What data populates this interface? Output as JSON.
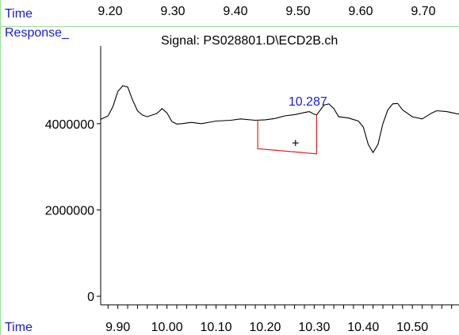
{
  "chart_data": {
    "type": "line",
    "title": "Signal: PS028801.D\\ECD2B.ch",
    "ylabel": "Response_",
    "xlabel": "Time",
    "top_axis_label": "Time",
    "top_ticks": [
      "9.20",
      "9.30",
      "9.40",
      "9.50",
      "9.60",
      "9.70"
    ],
    "x_ticks": [
      "9.90",
      "10.00",
      "10.10",
      "10.20",
      "10.30",
      "10.40",
      "10.50"
    ],
    "y_ticks": [
      "0",
      "2000000",
      "4000000"
    ],
    "xlim": [
      9.865,
      10.595
    ],
    "ylim": [
      -200000,
      5800000
    ],
    "peak_label": "10.287",
    "integration_region": {
      "x_start": 10.185,
      "x_end": 10.305,
      "baseline_start": 3420000,
      "baseline_end": 3300000
    },
    "cursor_marker": {
      "x": 10.262,
      "y": 3560000,
      "symbol": "+"
    },
    "series": [
      {
        "x": [
          9.865,
          9.88,
          9.89,
          9.9,
          9.91,
          9.92,
          9.93,
          9.94,
          9.95,
          9.96,
          9.97,
          9.98,
          9.99,
          10.0,
          10.01,
          10.02,
          10.03,
          10.05,
          10.07,
          10.1,
          10.13,
          10.15,
          10.18,
          10.2,
          10.22,
          10.24,
          10.26,
          10.28,
          10.29,
          10.3,
          10.305,
          10.31,
          10.32,
          10.33,
          10.34,
          10.35,
          10.37,
          10.39,
          10.4,
          10.41,
          10.42,
          10.43,
          10.44,
          10.45,
          10.46,
          10.47,
          10.48,
          10.5,
          10.52,
          10.54,
          10.55,
          10.57,
          10.595
        ],
        "y": [
          4100000,
          4180000,
          4400000,
          4750000,
          4880000,
          4850000,
          4550000,
          4300000,
          4200000,
          4160000,
          4200000,
          4240000,
          4350000,
          4250000,
          4050000,
          3990000,
          4000000,
          4030000,
          4000000,
          4060000,
          4080000,
          4110000,
          4080000,
          4090000,
          4120000,
          4180000,
          4210000,
          4260000,
          4280000,
          4220000,
          4200000,
          4280000,
          4430000,
          4460000,
          4350000,
          4160000,
          4130000,
          4060000,
          3920000,
          3520000,
          3330000,
          3520000,
          4000000,
          4320000,
          4460000,
          4470000,
          4320000,
          4160000,
          4110000,
          4250000,
          4300000,
          4280000,
          4220000
        ]
      }
    ]
  }
}
